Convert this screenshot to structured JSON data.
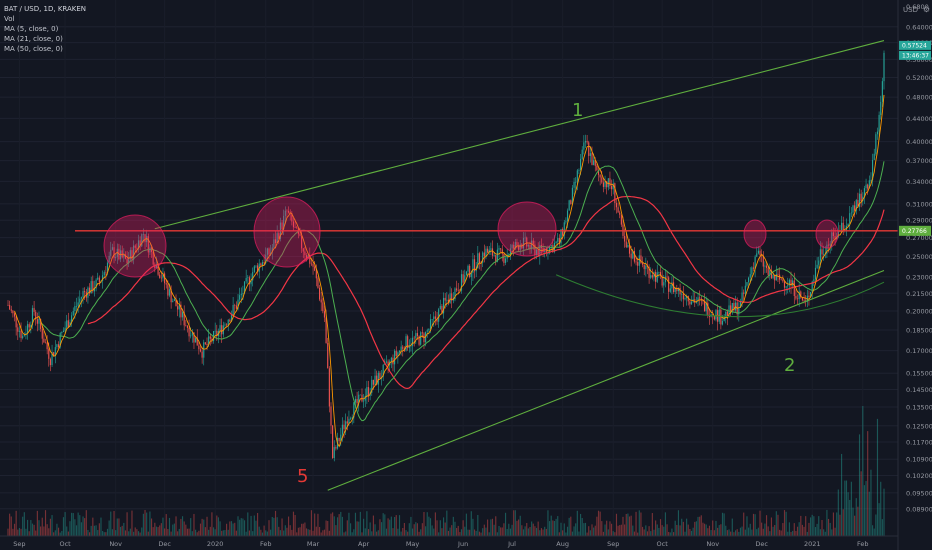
{
  "legend": {
    "symbol_line": "BAT / USD, 1D, KRAKEN",
    "vol": "Vol",
    "ma5": "MA (5, close, 0)",
    "ma21": "MA (21, close, 0)",
    "ma50": "MA (50, close, 0)"
  },
  "axis_unit": "USD",
  "axis_icon": "settings-icon",
  "price_tag": "0.57524",
  "countdown_tag": "13:46:37",
  "line_tag": "0.27766",
  "colors": {
    "background": "#131722",
    "up": "#26a69a",
    "down": "#ef5350",
    "ma5": "#ff9800",
    "ma21": "#4caf50",
    "ma50": "#f23645",
    "trendline": "#5fae3e",
    "resistance": "#e53935",
    "circle": "#e91e63"
  },
  "annotations": {
    "label_1": "1",
    "label_2": "2",
    "label_5": "5"
  },
  "chart_data": {
    "type": "candlestick",
    "y_ticks": [
      "0.64000",
      "0.60000",
      "0.56000",
      "0.52000",
      "0.48000",
      "0.44000",
      "0.40000",
      "0.37000",
      "0.34000",
      "0.31000",
      "0.29000",
      "0.27000",
      "0.25000",
      "0.23000",
      "0.21500",
      "0.20000",
      "0.18500",
      "0.17000",
      "0.15500",
      "0.14500",
      "0.13500",
      "0.12500",
      "0.11700",
      "0.10900",
      "0.10200",
      "0.09500",
      "0.08900"
    ],
    "y_top_cut": "0.6800",
    "x_ticks": [
      "Sep",
      "Oct",
      "Nov",
      "Dec",
      "2020",
      "Feb",
      "Mar",
      "Apr",
      "May",
      "Jun",
      "Jul",
      "Aug",
      "Sep",
      "Oct",
      "Nov",
      "Dec",
      "2021",
      "Feb"
    ],
    "ylim": [
      0.085,
      0.68
    ],
    "log_scale": true,
    "resistance_level": 0.27766,
    "last_price": 0.57524,
    "price_path": [
      [
        "2019-08-27",
        0.205
      ],
      [
        "2019-09-05",
        0.18
      ],
      [
        "2019-09-12",
        0.2
      ],
      [
        "2019-09-22",
        0.165
      ],
      [
        "2019-10-02",
        0.19
      ],
      [
        "2019-10-12",
        0.215
      ],
      [
        "2019-10-22",
        0.225
      ],
      [
        "2019-10-30",
        0.255
      ],
      [
        "2019-11-08",
        0.245
      ],
      [
        "2019-11-18",
        0.275
      ],
      [
        "2019-11-25",
        0.245
      ],
      [
        "2019-12-04",
        0.215
      ],
      [
        "2019-12-14",
        0.19
      ],
      [
        "2019-12-24",
        0.17
      ],
      [
        "2020-01-04",
        0.185
      ],
      [
        "2020-01-14",
        0.205
      ],
      [
        "2020-01-24",
        0.235
      ],
      [
        "2020-02-04",
        0.255
      ],
      [
        "2020-02-14",
        0.3
      ],
      [
        "2020-02-22",
        0.265
      ],
      [
        "2020-03-01",
        0.24
      ],
      [
        "2020-03-08",
        0.195
      ],
      [
        "2020-03-13",
        0.11
      ],
      [
        "2020-03-22",
        0.13
      ],
      [
        "2020-04-04",
        0.145
      ],
      [
        "2020-04-16",
        0.16
      ],
      [
        "2020-04-26",
        0.175
      ],
      [
        "2020-05-08",
        0.18
      ],
      [
        "2020-05-20",
        0.205
      ],
      [
        "2020-06-02",
        0.23
      ],
      [
        "2020-06-14",
        0.255
      ],
      [
        "2020-06-26",
        0.25
      ],
      [
        "2020-07-06",
        0.265
      ],
      [
        "2020-07-18",
        0.255
      ],
      [
        "2020-07-30",
        0.265
      ],
      [
        "2020-08-08",
        0.33
      ],
      [
        "2020-08-15",
        0.4
      ],
      [
        "2020-08-22",
        0.35
      ],
      [
        "2020-09-01",
        0.33
      ],
      [
        "2020-09-08",
        0.26
      ],
      [
        "2020-09-20",
        0.24
      ],
      [
        "2020-10-02",
        0.225
      ],
      [
        "2020-10-14",
        0.215
      ],
      [
        "2020-10-26",
        0.205
      ],
      [
        "2020-11-06",
        0.195
      ],
      [
        "2020-11-18",
        0.205
      ],
      [
        "2020-11-28",
        0.255
      ],
      [
        "2020-12-06",
        0.23
      ],
      [
        "2020-12-18",
        0.225
      ],
      [
        "2020-12-28",
        0.205
      ],
      [
        "2021-01-06",
        0.255
      ],
      [
        "2021-01-14",
        0.27
      ],
      [
        "2021-01-22",
        0.285
      ],
      [
        "2021-01-30",
        0.315
      ],
      [
        "2021-02-06",
        0.35
      ],
      [
        "2021-02-11",
        0.44
      ],
      [
        "2021-02-14",
        0.575
      ]
    ],
    "channel_upper": [
      [
        "2019-11-25",
        0.28
      ],
      [
        "2021-02-14",
        0.605
      ]
    ],
    "channel_lower": [
      [
        "2020-03-10",
        0.096
      ],
      [
        "2021-02-14",
        0.236
      ]
    ],
    "arc_support": [
      [
        "2020-07-28",
        0.232
      ],
      [
        "2020-11-18",
        0.18
      ],
      [
        "2021-02-14",
        0.225
      ]
    ]
  }
}
